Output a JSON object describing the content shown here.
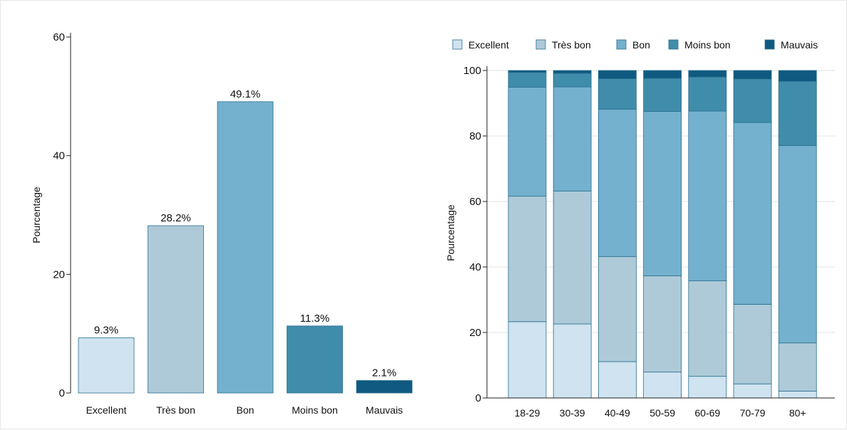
{
  "chart_data": [
    {
      "type": "bar",
      "categories": [
        "Excellent",
        "Très bon",
        "Bon",
        "Moins bon",
        "Mauvais"
      ],
      "values": [
        9.3,
        28.2,
        49.1,
        11.3,
        2.1
      ],
      "value_labels": [
        "9.3%",
        "28.2%",
        "49.1%",
        "11.3%",
        "2.1%"
      ],
      "colors": [
        "#cfe3f0",
        "#aecad8",
        "#74b1ce",
        "#408cab",
        "#0f5a80"
      ],
      "title": "",
      "xlabel": "",
      "ylabel": "Pourcentage",
      "ylim": [
        0,
        60
      ],
      "yticks": [
        0,
        20,
        40,
        60
      ],
      "grid": false,
      "legend": "none"
    },
    {
      "type": "bar",
      "stacked": true,
      "categories": [
        "18-29",
        "30-39",
        "40-49",
        "50-59",
        "60-69",
        "70-79",
        "80+"
      ],
      "series": [
        {
          "name": "Excellent",
          "color": "#cfe3f0",
          "values": [
            23.3,
            22.6,
            11.1,
            7.9,
            6.6,
            4.3,
            2.1
          ]
        },
        {
          "name": "Très bon",
          "color": "#aecad8",
          "values": [
            38.3,
            40.6,
            32.1,
            29.4,
            29.2,
            24.3,
            14.7
          ]
        },
        {
          "name": "Bon",
          "color": "#74b1ce",
          "values": [
            33.3,
            31.8,
            45.0,
            50.2,
            51.8,
            55.5,
            60.3
          ]
        },
        {
          "name": "Moins bon",
          "color": "#408cab",
          "values": [
            4.5,
            4.1,
            9.3,
            10.1,
            10.4,
            13.3,
            19.6
          ]
        },
        {
          "name": "Mauvais",
          "color": "#0f5a80",
          "values": [
            0.6,
            0.9,
            2.5,
            2.4,
            2.0,
            2.6,
            3.3
          ]
        }
      ],
      "title": "",
      "xlabel": "",
      "ylabel": "Pourcentage",
      "ylim": [
        0,
        100
      ],
      "yticks": [
        0,
        20,
        40,
        60,
        80,
        100
      ],
      "grid": true,
      "legend": "top"
    }
  ]
}
